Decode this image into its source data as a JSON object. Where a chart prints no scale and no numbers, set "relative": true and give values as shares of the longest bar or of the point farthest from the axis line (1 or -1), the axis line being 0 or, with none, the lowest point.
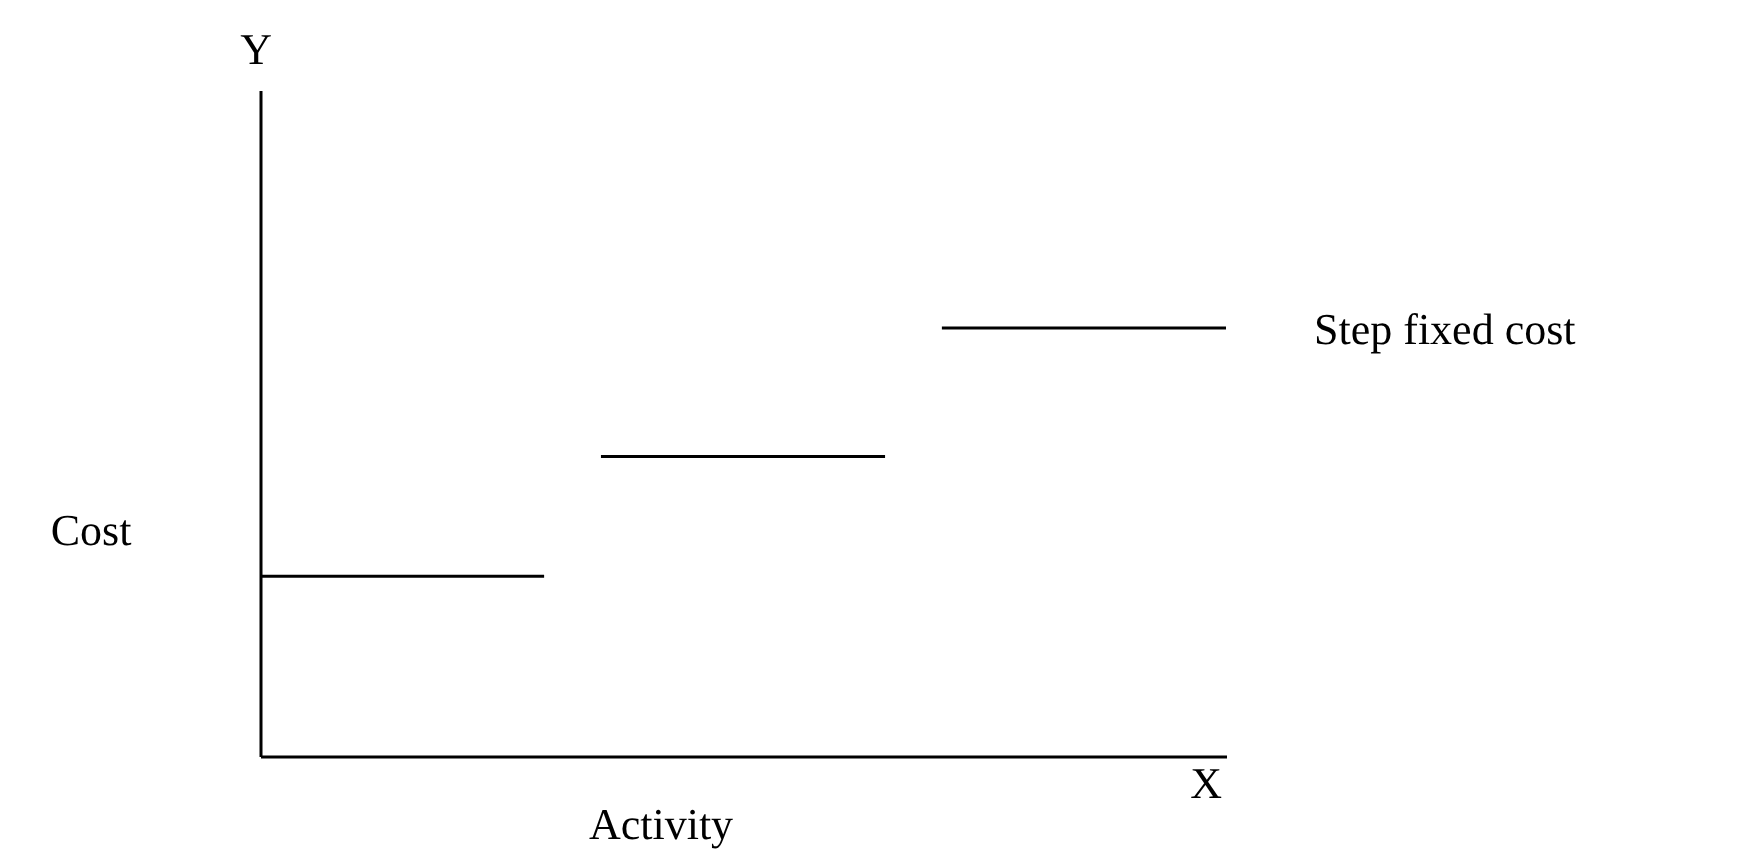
{
  "chart_data": {
    "type": "line",
    "relative": true,
    "xlabel": "Activity",
    "ylabel": "Cost",
    "categories": [
      null,
      null,
      null,
      null,
      null,
      null,
      null,
      null,
      null,
      null,
      null,
      null,
      null,
      null,
      null,
      null,
      null,
      null,
      null,
      null,
      null,
      null,
      null,
      null,
      null,
      null,
      null,
      null,
      null,
      null,
      null,
      null,
      null,
      null,
      null
    ],
    "series": [
      {
        "color": "#000000",
        "values": [
          0.42,
          0.42,
          0.42,
          0.42,
          0.42,
          0.42,
          0.42,
          0.42,
          0.42,
          0.42,
          0.42,
          null,
          0.7,
          0.7,
          0.7,
          0.7,
          0.7,
          0.7,
          0.7,
          0.7,
          0.7,
          0.7,
          0.7,
          null,
          1,
          1,
          1,
          1,
          1,
          1,
          1,
          1,
          1,
          1,
          1
        ]
      }
    ],
    "annotations": [
      "Y",
      "X",
      "Step fixed cost"
    ],
    "grid": false,
    "legend": false,
    "marker": "none",
    "line_style": "solid"
  }
}
